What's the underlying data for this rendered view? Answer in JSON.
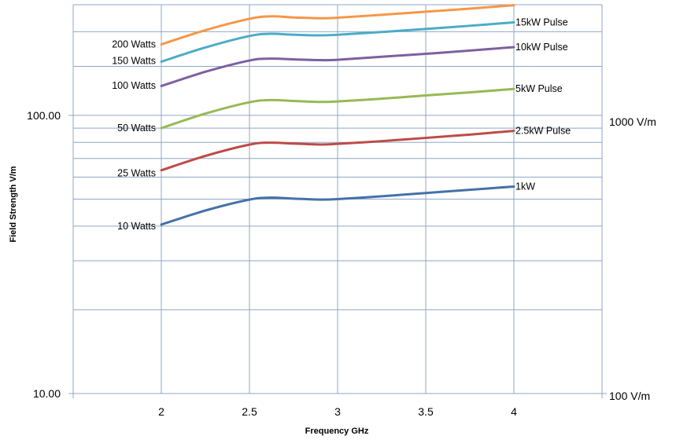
{
  "chart_data": {
    "type": "line",
    "xlabel": "Frequency GHz",
    "ylabel": "Field Strength V/m",
    "y_scale": "log",
    "xlim": [
      1.5,
      4.5
    ],
    "ylim": [
      10,
      250
    ],
    "x_ticks": [
      "2",
      "2.5",
      "3",
      "3.5",
      "4"
    ],
    "y_ticks": [
      "10.00",
      "100.00"
    ],
    "right_axis_labels": [
      {
        "text": "1000 V/m",
        "y": 90
      },
      {
        "text": "100 V/m",
        "y": 10
      }
    ],
    "gridlines_y": [
      20,
      30,
      40,
      50,
      60,
      70,
      80,
      90,
      100,
      150,
      200,
      250
    ],
    "left_annotations": [
      {
        "text": "200 Watts",
        "y": 180
      },
      {
        "text": "150 Watts",
        "y": 157
      },
      {
        "text": "100 Watts",
        "y": 128
      },
      {
        "text": "50 Watts",
        "y": 90
      },
      {
        "text": "25 Watts",
        "y": 62
      },
      {
        "text": "10 Watts",
        "y": 40
      }
    ],
    "series": [
      {
        "name": "1kW",
        "color": "#4472A8",
        "x": [
          2,
          2.25,
          2.5,
          2.62,
          2.75,
          2.9,
          3.0,
          3.25,
          3.5,
          3.75,
          4.0
        ],
        "y": [
          40.5,
          45.5,
          49.8,
          50.6,
          50.2,
          49.8,
          50.0,
          51.2,
          52.6,
          54.0,
          55.5
        ]
      },
      {
        "name": "2.5kW Pulse",
        "color": "#BE4B48",
        "x": [
          2,
          2.25,
          2.5,
          2.62,
          2.75,
          2.9,
          3.0,
          3.25,
          3.5,
          3.75,
          4.0
        ],
        "y": [
          63.5,
          71.5,
          78.5,
          79.8,
          79.2,
          78.6,
          79.0,
          80.8,
          83.0,
          85.3,
          88.0
        ]
      },
      {
        "name": "5kW Pulse",
        "color": "#98B954",
        "x": [
          2,
          2.25,
          2.5,
          2.62,
          2.75,
          2.9,
          3.0,
          3.25,
          3.5,
          3.75,
          4.0
        ],
        "y": [
          90.0,
          101.5,
          111.5,
          113.5,
          112.7,
          111.8,
          112.3,
          114.8,
          118.0,
          121.0,
          124.5
        ]
      },
      {
        "name": "10kW Pulse",
        "color": "#7D60A0",
        "x": [
          2,
          2.25,
          2.5,
          2.62,
          2.75,
          2.9,
          3.0,
          3.25,
          3.5,
          3.75,
          4.0
        ],
        "y": [
          127.5,
          143.5,
          157.5,
          160.0,
          159.0,
          158.0,
          158.5,
          162.5,
          166.5,
          171.0,
          176.0
        ]
      },
      {
        "name": "15kW Pulse",
        "color": "#4BACC6",
        "x": [
          2,
          2.25,
          2.5,
          2.62,
          2.75,
          2.9,
          3.0,
          3.25,
          3.5,
          3.75,
          4.0
        ],
        "y": [
          156.0,
          175.5,
          193.0,
          196.5,
          195.0,
          194.0,
          195.0,
          199.5,
          204.5,
          210.0,
          216.0
        ]
      },
      {
        "name": "",
        "color": "#F79646",
        "x": [
          2,
          2.25,
          2.5,
          2.62,
          2.75,
          2.9,
          3.0,
          3.25,
          3.5,
          3.75,
          4.0
        ],
        "y": [
          180.0,
          202.5,
          222.5,
          227.0,
          225.0,
          223.5,
          224.5,
          230.0,
          236.0,
          242.0,
          249.0
        ]
      }
    ],
    "grid": true,
    "legend": "none"
  }
}
